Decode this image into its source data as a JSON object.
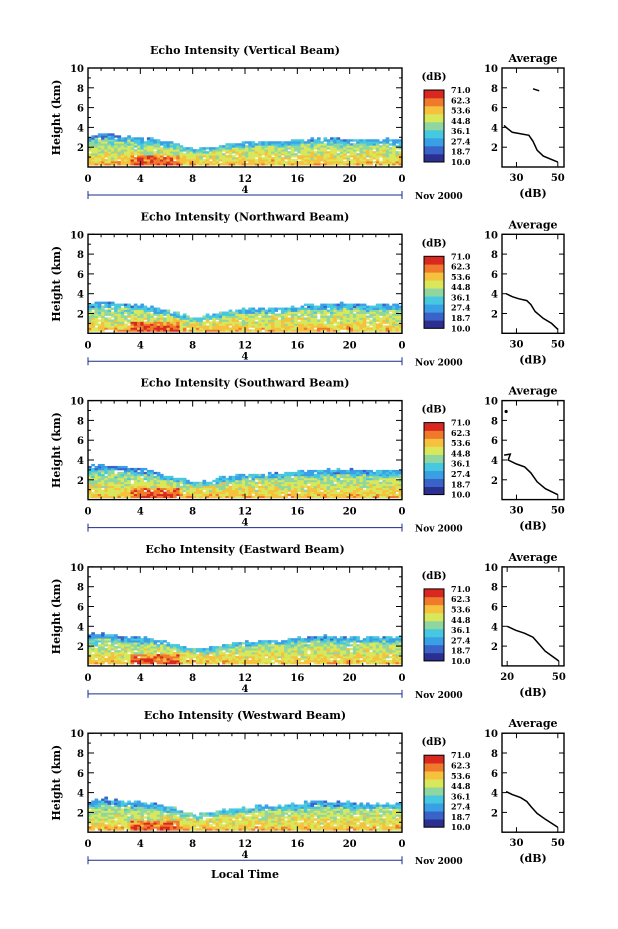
{
  "chart_data": {
    "type": "heatmap",
    "xlabel": "Local Time",
    "x_ticks": [
      "0",
      "4",
      "8",
      "12",
      "16",
      "20",
      "0"
    ],
    "date_label": "4",
    "month_label": "Nov 2000",
    "ylabel": "Height (km)",
    "y_ticks": [
      "2",
      "4",
      "6",
      "8",
      "10"
    ],
    "ylim": [
      0,
      10
    ],
    "colorbar": {
      "unit": "(dB)",
      "ticks": [
        "71.0",
        "62.3",
        "53.6",
        "44.8",
        "36.1",
        "27.4",
        "18.7",
        "10.0"
      ]
    },
    "profile": {
      "title": "Average",
      "xlabel": "(dB)"
    },
    "panels": [
      {
        "title": "Echo Intensity (Vertical Beam)",
        "echo_top_km": [
          3.3,
          3.4,
          3.2,
          3.1,
          3.0,
          2.8,
          2.5,
          2.1,
          1.8,
          2.0,
          2.3,
          2.5,
          2.6,
          2.6,
          2.6,
          2.7,
          2.9,
          3.0,
          3.0,
          2.9,
          2.8,
          2.8,
          2.9,
          2.8
        ],
        "profile_ticks": [
          "30",
          "50"
        ],
        "profile_xlim": [
          23,
          53
        ],
        "profile_points": [
          [
            38,
            7.9
          ],
          [
            41,
            7.7
          ],
          [
            24,
            4.2
          ],
          [
            25,
            4.0
          ],
          [
            28,
            3.5
          ],
          [
            36,
            3.2
          ],
          [
            38,
            2.6
          ],
          [
            40,
            1.7
          ],
          [
            43,
            1.1
          ],
          [
            50,
            0.5
          ]
        ]
      },
      {
        "title": "Echo Intensity (Northward Beam)",
        "echo_top_km": [
          3.1,
          3.2,
          3.1,
          3.0,
          2.9,
          2.6,
          2.3,
          1.9,
          1.7,
          1.9,
          2.2,
          2.4,
          2.5,
          2.5,
          2.6,
          2.7,
          2.9,
          2.9,
          3.0,
          3.0,
          2.9,
          2.9,
          3.0,
          2.9
        ],
        "profile_ticks": [
          "30",
          "50"
        ],
        "profile_xlim": [
          23,
          53
        ],
        "profile_points": [
          [
            25,
            4.0
          ],
          [
            28,
            3.7
          ],
          [
            31,
            3.5
          ],
          [
            35,
            3.3
          ],
          [
            37,
            2.9
          ],
          [
            39,
            2.2
          ],
          [
            43,
            1.5
          ],
          [
            47,
            1.0
          ],
          [
            50,
            0.4
          ]
        ]
      },
      {
        "title": "Echo Intensity (Southward Beam)",
        "echo_top_km": [
          3.5,
          3.6,
          3.4,
          3.3,
          3.1,
          2.8,
          2.4,
          2.1,
          1.8,
          2.0,
          2.3,
          2.5,
          2.6,
          2.6,
          2.7,
          2.8,
          2.9,
          3.0,
          3.1,
          3.1,
          3.0,
          2.9,
          3.0,
          2.9
        ],
        "profile_ticks": [
          "30",
          "50"
        ],
        "profile_xlim": [
          23,
          53
        ],
        "profile_points": [
          [
            25,
            8.9
          ],
          [
            24,
            4.5
          ],
          [
            27,
            4.6
          ],
          [
            26,
            4.0
          ],
          [
            30,
            3.6
          ],
          [
            34,
            3.3
          ],
          [
            37,
            2.7
          ],
          [
            40,
            1.8
          ],
          [
            44,
            1.1
          ],
          [
            50,
            0.5
          ]
        ]
      },
      {
        "title": "Echo Intensity (Eastward Beam)",
        "echo_top_km": [
          3.2,
          3.3,
          3.1,
          3.0,
          2.9,
          2.7,
          2.3,
          2.0,
          1.7,
          1.9,
          2.2,
          2.4,
          2.5,
          2.6,
          2.6,
          2.8,
          3.0,
          3.1,
          3.1,
          3.0,
          2.9,
          2.9,
          3.0,
          2.9
        ],
        "profile_ticks": [
          "20",
          "50"
        ],
        "profile_xlim": [
          17,
          53
        ],
        "profile_points": [
          [
            20,
            4.0
          ],
          [
            25,
            3.6
          ],
          [
            30,
            3.3
          ],
          [
            35,
            2.9
          ],
          [
            38,
            2.3
          ],
          [
            42,
            1.5
          ],
          [
            46,
            1.0
          ],
          [
            50,
            0.5
          ]
        ]
      },
      {
        "title": "Echo Intensity (Westward Beam)",
        "echo_top_km": [
          3.2,
          3.4,
          3.3,
          3.1,
          3.0,
          2.8,
          2.5,
          2.1,
          1.8,
          2.0,
          2.3,
          2.5,
          2.6,
          2.7,
          2.7,
          2.8,
          3.0,
          3.1,
          3.1,
          3.0,
          2.9,
          2.9,
          3.0,
          2.9
        ],
        "profile_ticks": [
          "30",
          "50"
        ],
        "profile_xlim": [
          23,
          53
        ],
        "profile_points": [
          [
            25,
            4.1
          ],
          [
            28,
            3.8
          ],
          [
            32,
            3.5
          ],
          [
            35,
            3.1
          ],
          [
            37,
            2.6
          ],
          [
            40,
            1.9
          ],
          [
            44,
            1.3
          ],
          [
            47,
            0.9
          ],
          [
            50,
            0.5
          ]
        ]
      }
    ]
  },
  "colors": {
    "palette": [
      "#2b2f8f",
      "#3a63c9",
      "#3aa0e6",
      "#45c8e0",
      "#8fd6a0",
      "#d8e85a",
      "#f6c23d",
      "#f07a2c",
      "#d8281f"
    ],
    "axis": "#000000",
    "date_axis": "#1b2a8c"
  }
}
